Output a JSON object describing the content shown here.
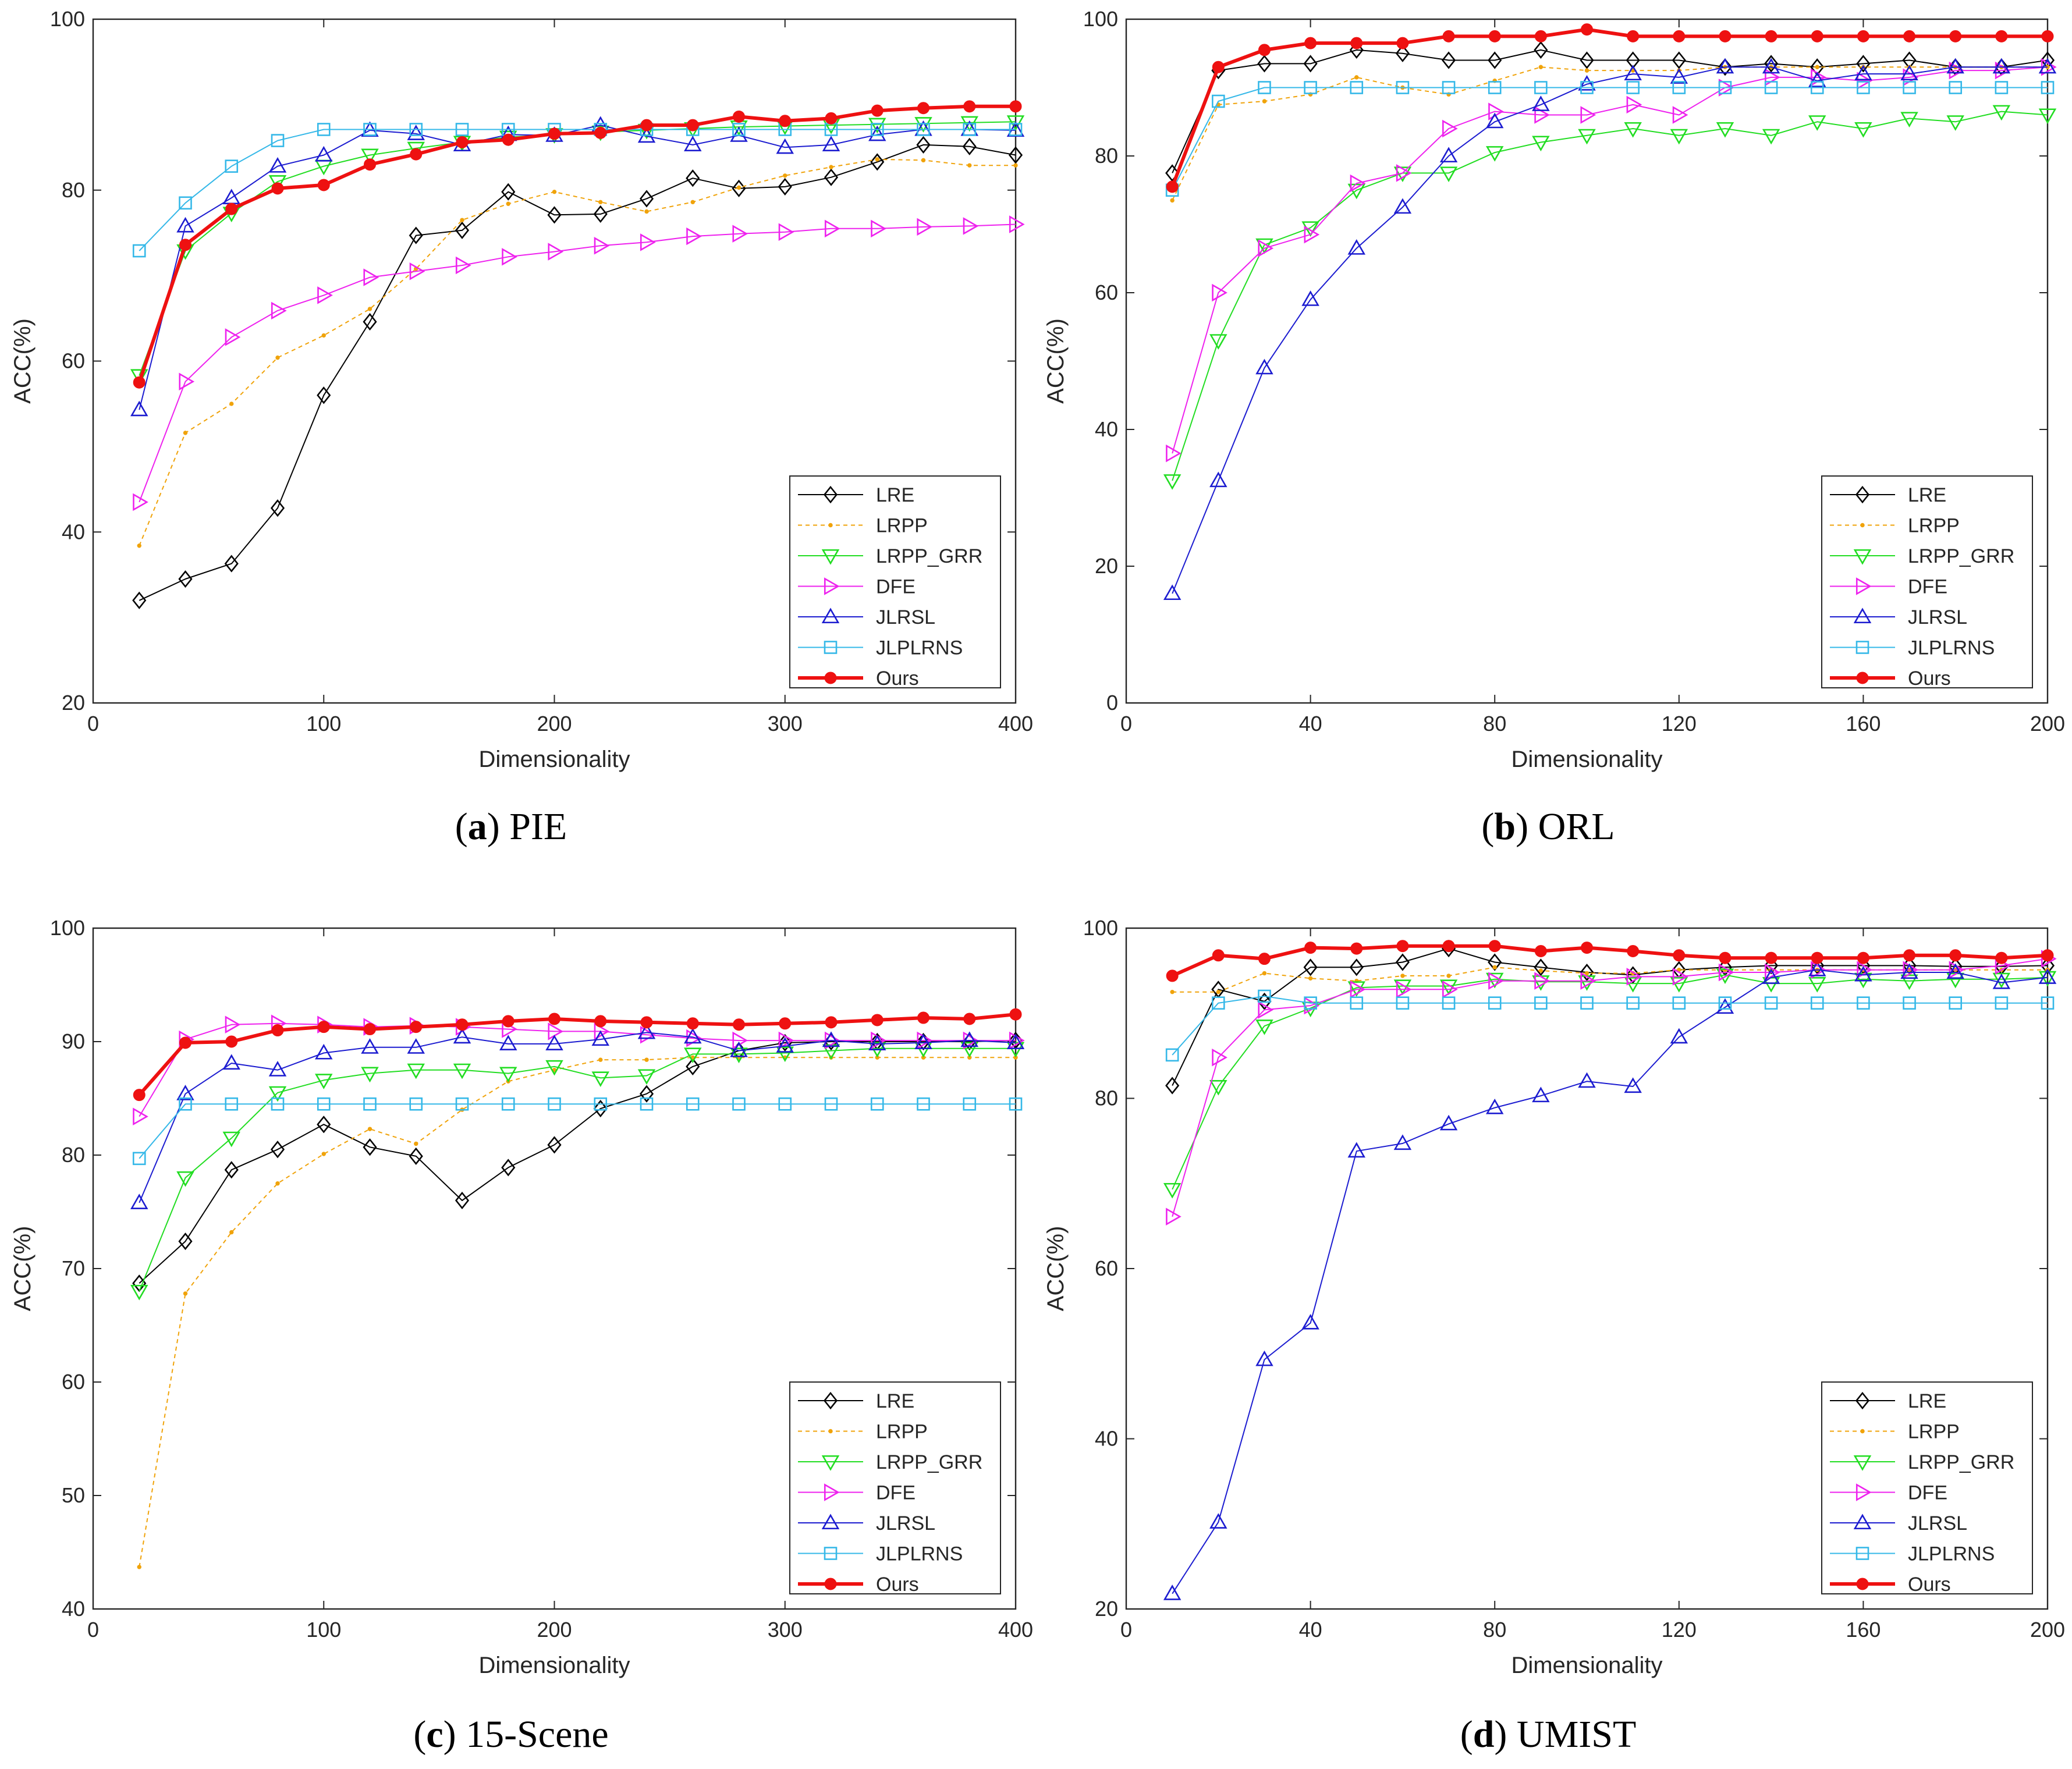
{
  "figure": {
    "subcaptions": [
      {
        "tag": "a",
        "name": "PIE"
      },
      {
        "tag": "b",
        "name": "ORL"
      },
      {
        "tag": "c",
        "name": "15-Scene"
      },
      {
        "tag": "d",
        "name": "UMIST"
      }
    ]
  },
  "style": {
    "colors": {
      "LRE": "#000000",
      "LRPP": "#f0a30a",
      "LRPP_GRR": "#22dd22",
      "DFE": "#ee22ee",
      "JLRSL": "#1c1cd0",
      "JLPLRNS": "#35b8e8",
      "Ours": "#ee1111"
    },
    "markers": {
      "LRE": "diamond-icon",
      "LRPP": "dot-icon",
      "LRPP_GRR": "triangle-down-icon",
      "DFE": "triangle-right-icon",
      "JLRSL": "triangle-up-icon",
      "JLPLRNS": "square-icon",
      "Ours": "filled-circle-icon"
    }
  },
  "chart_data": [
    {
      "type": "line",
      "title": "PIE",
      "xlabel": "Dimensionality",
      "ylabel": "ACC(%)",
      "xlim": [
        0,
        400
      ],
      "ylim": [
        20,
        100
      ],
      "xticks": [
        0,
        100,
        200,
        300,
        400
      ],
      "yticks": [
        20,
        40,
        60,
        80,
        100
      ],
      "legend_position": "bottom-right",
      "x": [
        20,
        40,
        60,
        80,
        100,
        120,
        140,
        160,
        180,
        200,
        220,
        240,
        260,
        280,
        300,
        320,
        340,
        360,
        380,
        400
      ],
      "series": [
        {
          "name": "LRE",
          "values": [
            32,
            34.5,
            36.3,
            42.8,
            56,
            64.6,
            74.7,
            75.3,
            79.8,
            77.1,
            77.2,
            79,
            81.4,
            80.2,
            80.4,
            81.5,
            83.3,
            85.3,
            85.1,
            84.1
          ]
        },
        {
          "name": "LRPP",
          "values": [
            38.4,
            51.6,
            55,
            60.4,
            63,
            66.1,
            70.8,
            76.5,
            78.4,
            79.8,
            78.6,
            77.5,
            78.6,
            80.3,
            81.7,
            82.7,
            83.6,
            83.5,
            82.9,
            82.9
          ]
        },
        {
          "name": "LRPP_GRR",
          "values": [
            58.3,
            72.9,
            77.3,
            81,
            82.8,
            84.1,
            84.9,
            85.6,
            86.2,
            86.5,
            86.8,
            87,
            87.2,
            87.4,
            87.5,
            87.6,
            87.7,
            87.8,
            87.9,
            88
          ]
        },
        {
          "name": "DFE",
          "values": [
            43.5,
            57.6,
            62.8,
            65.9,
            67.7,
            69.8,
            70.5,
            71.2,
            72.2,
            72.8,
            73.5,
            73.9,
            74.6,
            74.9,
            75.1,
            75.5,
            75.5,
            75.7,
            75.8,
            76
          ]
        },
        {
          "name": "JLRSL",
          "values": [
            54.3,
            75.8,
            79.1,
            82.8,
            84.1,
            87,
            86.6,
            85.3,
            86.5,
            86.4,
            87.6,
            86.3,
            85.3,
            86.4,
            85,
            85.3,
            86.5,
            87.1,
            87.1,
            87
          ]
        },
        {
          "name": "JLPLRNS",
          "values": [
            72.9,
            78.5,
            82.8,
            85.8,
            87.1,
            87.1,
            87.1,
            87.1,
            87.1,
            87.1,
            87.1,
            87.1,
            87.1,
            87.1,
            87.1,
            87.1,
            87.1,
            87.1,
            87.1,
            87.1
          ]
        },
        {
          "name": "Ours",
          "values": [
            57.5,
            73.6,
            77.8,
            80.2,
            80.6,
            83,
            84.2,
            85.6,
            85.9,
            86.6,
            86.7,
            87.6,
            87.6,
            88.6,
            88.1,
            88.4,
            89.3,
            89.6,
            89.8,
            89.8
          ]
        }
      ]
    },
    {
      "type": "line",
      "title": "ORL",
      "xlabel": "Dimensionality",
      "ylabel": "ACC(%)",
      "xlim": [
        0,
        200
      ],
      "ylim": [
        0,
        100
      ],
      "xticks": [
        0,
        40,
        80,
        120,
        160,
        200
      ],
      "yticks": [
        0,
        20,
        40,
        60,
        80,
        100
      ],
      "legend_position": "bottom-right",
      "x": [
        10,
        20,
        30,
        40,
        50,
        60,
        70,
        80,
        90,
        100,
        110,
        120,
        130,
        140,
        150,
        160,
        170,
        180,
        190,
        200
      ],
      "series": [
        {
          "name": "LRE",
          "values": [
            77.5,
            92.5,
            93.5,
            93.5,
            95.5,
            95,
            94,
            94,
            95.5,
            94,
            94,
            94,
            93,
            93.5,
            93,
            93.5,
            94,
            93,
            93,
            94
          ]
        },
        {
          "name": "LRPP",
          "values": [
            73.5,
            87.5,
            88,
            89,
            91.5,
            90,
            89,
            91,
            93,
            92.5,
            92.5,
            92.5,
            93,
            93,
            93,
            93,
            93,
            93,
            93,
            93
          ]
        },
        {
          "name": "LRPP_GRR",
          "values": [
            32.5,
            53,
            67,
            69.5,
            75,
            77.5,
            77.5,
            80.5,
            82,
            83,
            84,
            83,
            84,
            83,
            85,
            84,
            85.5,
            85,
            86.5,
            86
          ]
        },
        {
          "name": "DFE",
          "values": [
            36.5,
            60,
            66.5,
            68.5,
            76,
            77.5,
            84,
            86.5,
            86,
            86,
            87.5,
            86,
            90,
            91.5,
            91.5,
            91,
            91.5,
            92.5,
            92.5,
            93
          ]
        },
        {
          "name": "JLRSL",
          "values": [
            16,
            32.5,
            49,
            59,
            66.5,
            72.5,
            80,
            85,
            87.5,
            90.5,
            92,
            91.5,
            93,
            93,
            91,
            92,
            92,
            93,
            93,
            93
          ]
        },
        {
          "name": "JLPLRNS",
          "values": [
            75,
            88,
            90,
            90,
            90,
            90,
            90,
            90,
            90,
            90,
            90,
            90,
            90,
            90,
            90,
            90,
            90,
            90,
            90,
            90
          ]
        },
        {
          "name": "Ours",
          "values": [
            75.5,
            93,
            95.5,
            96.5,
            96.5,
            96.5,
            97.5,
            97.5,
            97.5,
            98.5,
            97.5,
            97.5,
            97.5,
            97.5,
            97.5,
            97.5,
            97.5,
            97.5,
            97.5,
            97.5
          ]
        }
      ]
    },
    {
      "type": "line",
      "title": "15-Scene",
      "xlabel": "Dimensionality",
      "ylabel": "ACC(%)",
      "xlim": [
        0,
        400
      ],
      "ylim": [
        40,
        100
      ],
      "xticks": [
        0,
        100,
        200,
        300,
        400
      ],
      "yticks": [
        40,
        50,
        60,
        70,
        80,
        90,
        100
      ],
      "legend_position": "bottom-right",
      "x": [
        20,
        40,
        60,
        80,
        100,
        120,
        140,
        160,
        180,
        200,
        220,
        240,
        260,
        280,
        300,
        320,
        340,
        360,
        380,
        400
      ],
      "series": [
        {
          "name": "LRE",
          "values": [
            68.7,
            72.4,
            78.7,
            80.5,
            82.7,
            80.7,
            79.9,
            76,
            78.9,
            80.9,
            84.1,
            85.4,
            87.8,
            89.2,
            89.9,
            90,
            90,
            90,
            90,
            90.1
          ]
        },
        {
          "name": "LRPP",
          "values": [
            43.7,
            67.8,
            73.2,
            77.5,
            80.1,
            82.3,
            81,
            84,
            86.5,
            87.5,
            88.4,
            88.4,
            88.6,
            88.6,
            88.6,
            88.6,
            88.6,
            88.6,
            88.6,
            88.6
          ]
        },
        {
          "name": "LRPP_GRR",
          "values": [
            68,
            78,
            81.5,
            85.5,
            86.6,
            87.2,
            87.5,
            87.5,
            87.2,
            87.8,
            86.8,
            87,
            88.9,
            88.9,
            89,
            89.2,
            89.4,
            89.4,
            89.4,
            89.4
          ]
        },
        {
          "name": "DFE",
          "values": [
            83.4,
            90.2,
            91.5,
            91.6,
            91.5,
            91.3,
            91.4,
            91.3,
            91.1,
            90.9,
            90.9,
            90.6,
            90.3,
            90.1,
            90.1,
            90.1,
            90.1,
            90.1,
            90.1,
            90.1
          ]
        },
        {
          "name": "JLRSL",
          "values": [
            75.8,
            85.4,
            88.1,
            87.5,
            89,
            89.5,
            89.5,
            90.4,
            89.8,
            89.8,
            90.2,
            90.8,
            90.4,
            89.2,
            89.6,
            90.1,
            89.8,
            89.9,
            90.1,
            89.9
          ]
        },
        {
          "name": "JLPLRNS",
          "values": [
            79.7,
            84.5,
            84.5,
            84.5,
            84.5,
            84.5,
            84.5,
            84.5,
            84.5,
            84.5,
            84.5,
            84.5,
            84.5,
            84.5,
            84.5,
            84.5,
            84.5,
            84.5,
            84.5,
            84.5
          ]
        },
        {
          "name": "Ours",
          "values": [
            85.3,
            89.9,
            90,
            91,
            91.3,
            91.1,
            91.3,
            91.5,
            91.8,
            92,
            91.8,
            91.7,
            91.6,
            91.5,
            91.6,
            91.7,
            91.9,
            92.1,
            92,
            92.4
          ]
        }
      ]
    },
    {
      "type": "line",
      "title": "UMIST",
      "xlabel": "Dimensionality",
      "ylabel": "ACC(%)",
      "xlim": [
        0,
        200
      ],
      "ylim": [
        20,
        100
      ],
      "xticks": [
        0,
        40,
        80,
        120,
        160,
        200
      ],
      "yticks": [
        20,
        40,
        60,
        80,
        100
      ],
      "legend_position": "bottom-right",
      "x": [
        10,
        20,
        30,
        40,
        50,
        60,
        70,
        80,
        90,
        100,
        110,
        120,
        130,
        140,
        150,
        160,
        170,
        180,
        190,
        200
      ],
      "series": [
        {
          "name": "LRE",
          "values": [
            81.5,
            92.8,
            91.4,
            95.4,
            95.4,
            96,
            97.6,
            96,
            95.4,
            94.8,
            94.5,
            95.1,
            95.4,
            95.6,
            95.6,
            95.6,
            95.6,
            95.5,
            95.5,
            95.6
          ]
        },
        {
          "name": "LRPP",
          "values": [
            92.5,
            92.5,
            94.7,
            94.1,
            93.8,
            94.4,
            94.4,
            95.4,
            95,
            94.7,
            94.7,
            95.1,
            95.1,
            95.1,
            95.1,
            95.1,
            95.1,
            95.1,
            95.1,
            95.1
          ]
        },
        {
          "name": "LRPP_GRR",
          "values": [
            69.3,
            81.4,
            88.5,
            90.6,
            93,
            93.2,
            93.2,
            94,
            93.7,
            93.7,
            93.5,
            93.5,
            94.5,
            93.5,
            93.5,
            94,
            93.8,
            94,
            94,
            94.2
          ]
        },
        {
          "name": "DFE",
          "values": [
            66.1,
            84.8,
            90.4,
            90.9,
            92.8,
            92.8,
            92.8,
            93.8,
            93.8,
            93.8,
            94.3,
            94.3,
            94.8,
            94.8,
            95.1,
            95.1,
            95.1,
            95.1,
            95.6,
            96.4
          ]
        },
        {
          "name": "JLRSL",
          "values": [
            21.8,
            30.2,
            49.3,
            53.6,
            73.8,
            74.7,
            77,
            78.9,
            80.3,
            82,
            81.4,
            87.2,
            90.7,
            94.2,
            95.1,
            94.5,
            94.8,
            94.8,
            93.6,
            94.2
          ]
        },
        {
          "name": "JLPLRNS",
          "values": [
            85.1,
            91.2,
            92,
            91.2,
            91.2,
            91.2,
            91.2,
            91.2,
            91.2,
            91.2,
            91.2,
            91.2,
            91.2,
            91.2,
            91.2,
            91.2,
            91.2,
            91.2,
            91.2,
            91.2
          ]
        },
        {
          "name": "Ours",
          "values": [
            94.4,
            96.8,
            96.4,
            97.7,
            97.6,
            97.9,
            97.9,
            97.9,
            97.3,
            97.7,
            97.3,
            96.8,
            96.5,
            96.5,
            96.5,
            96.5,
            96.8,
            96.8,
            96.5,
            96.8
          ]
        }
      ]
    }
  ]
}
